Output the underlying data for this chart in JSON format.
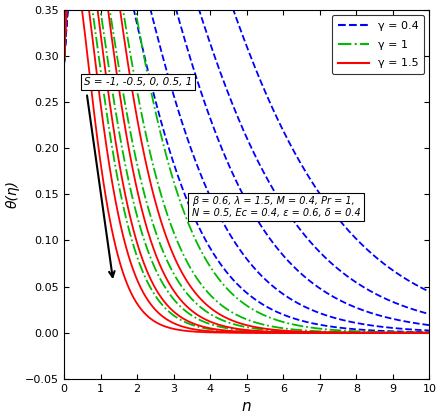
{
  "title": "",
  "xlabel": "n",
  "ylabel": "θ(η)",
  "xlim": [
    0,
    10
  ],
  "ylim": [
    -0.05,
    0.35
  ],
  "xticks": [
    0,
    1,
    2,
    3,
    4,
    5,
    6,
    7,
    8,
    9,
    10
  ],
  "yticks": [
    -0.05,
    0,
    0.05,
    0.1,
    0.15,
    0.2,
    0.25,
    0.3,
    0.35
  ],
  "S_values": [
    -1,
    -0.5,
    0,
    0.5,
    1
  ],
  "gamma_values": [
    0.4,
    1,
    1.5
  ],
  "annotation_text": "S = -1, -0.5, 0, 0.5, 1",
  "param_text": "β = 0.6, λ = 1.5, M = 0.4, Pr = 1,\nN = 0.5, Ec = 0.4, ε = 0.6, δ = 0.4",
  "colors": {
    "0.4": "#0000FF",
    "1": "#00BB00",
    "1.5": "#FF0000"
  },
  "linestyles": {
    "0.4": "--",
    "1": "-.",
    "1.5": "-"
  },
  "legend_labels": [
    "γ = 0.4",
    "γ = 1",
    "γ = 1.5"
  ],
  "background_color": "#FFFFFF",
  "curve_params": {
    "0.4": {
      "-1": {
        "A": 0.29,
        "peak": 1.55,
        "decay": 0.52
      },
      "-0.5": {
        "A": 0.29,
        "peak": 1.3,
        "decay": 0.6
      },
      "0": {
        "A": 0.29,
        "peak": 1.1,
        "decay": 0.7
      },
      "0.5": {
        "A": 0.29,
        "peak": 0.9,
        "decay": 0.82
      },
      "1": {
        "A": 0.29,
        "peak": 0.75,
        "decay": 0.96
      }
    },
    "1": {
      "-1": {
        "A": 0.29,
        "peak": 0.7,
        "decay": 1.1
      },
      "-0.5": {
        "A": 0.29,
        "peak": 0.6,
        "decay": 1.25
      },
      "0": {
        "A": 0.29,
        "peak": 0.5,
        "decay": 1.42
      },
      "0.5": {
        "A": 0.29,
        "peak": 0.42,
        "decay": 1.62
      },
      "1": {
        "A": 0.29,
        "peak": 0.35,
        "decay": 1.85
      }
    },
    "1.5": {
      "-1": {
        "A": 0.29,
        "peak": 0.55,
        "decay": 1.4
      },
      "-0.5": {
        "A": 0.29,
        "peak": 0.46,
        "decay": 1.6
      },
      "0": {
        "A": 0.29,
        "peak": 0.38,
        "decay": 1.82
      },
      "0.5": {
        "A": 0.29,
        "peak": 0.31,
        "decay": 2.08
      },
      "1": {
        "A": 0.29,
        "peak": 0.25,
        "decay": 2.38
      }
    }
  }
}
